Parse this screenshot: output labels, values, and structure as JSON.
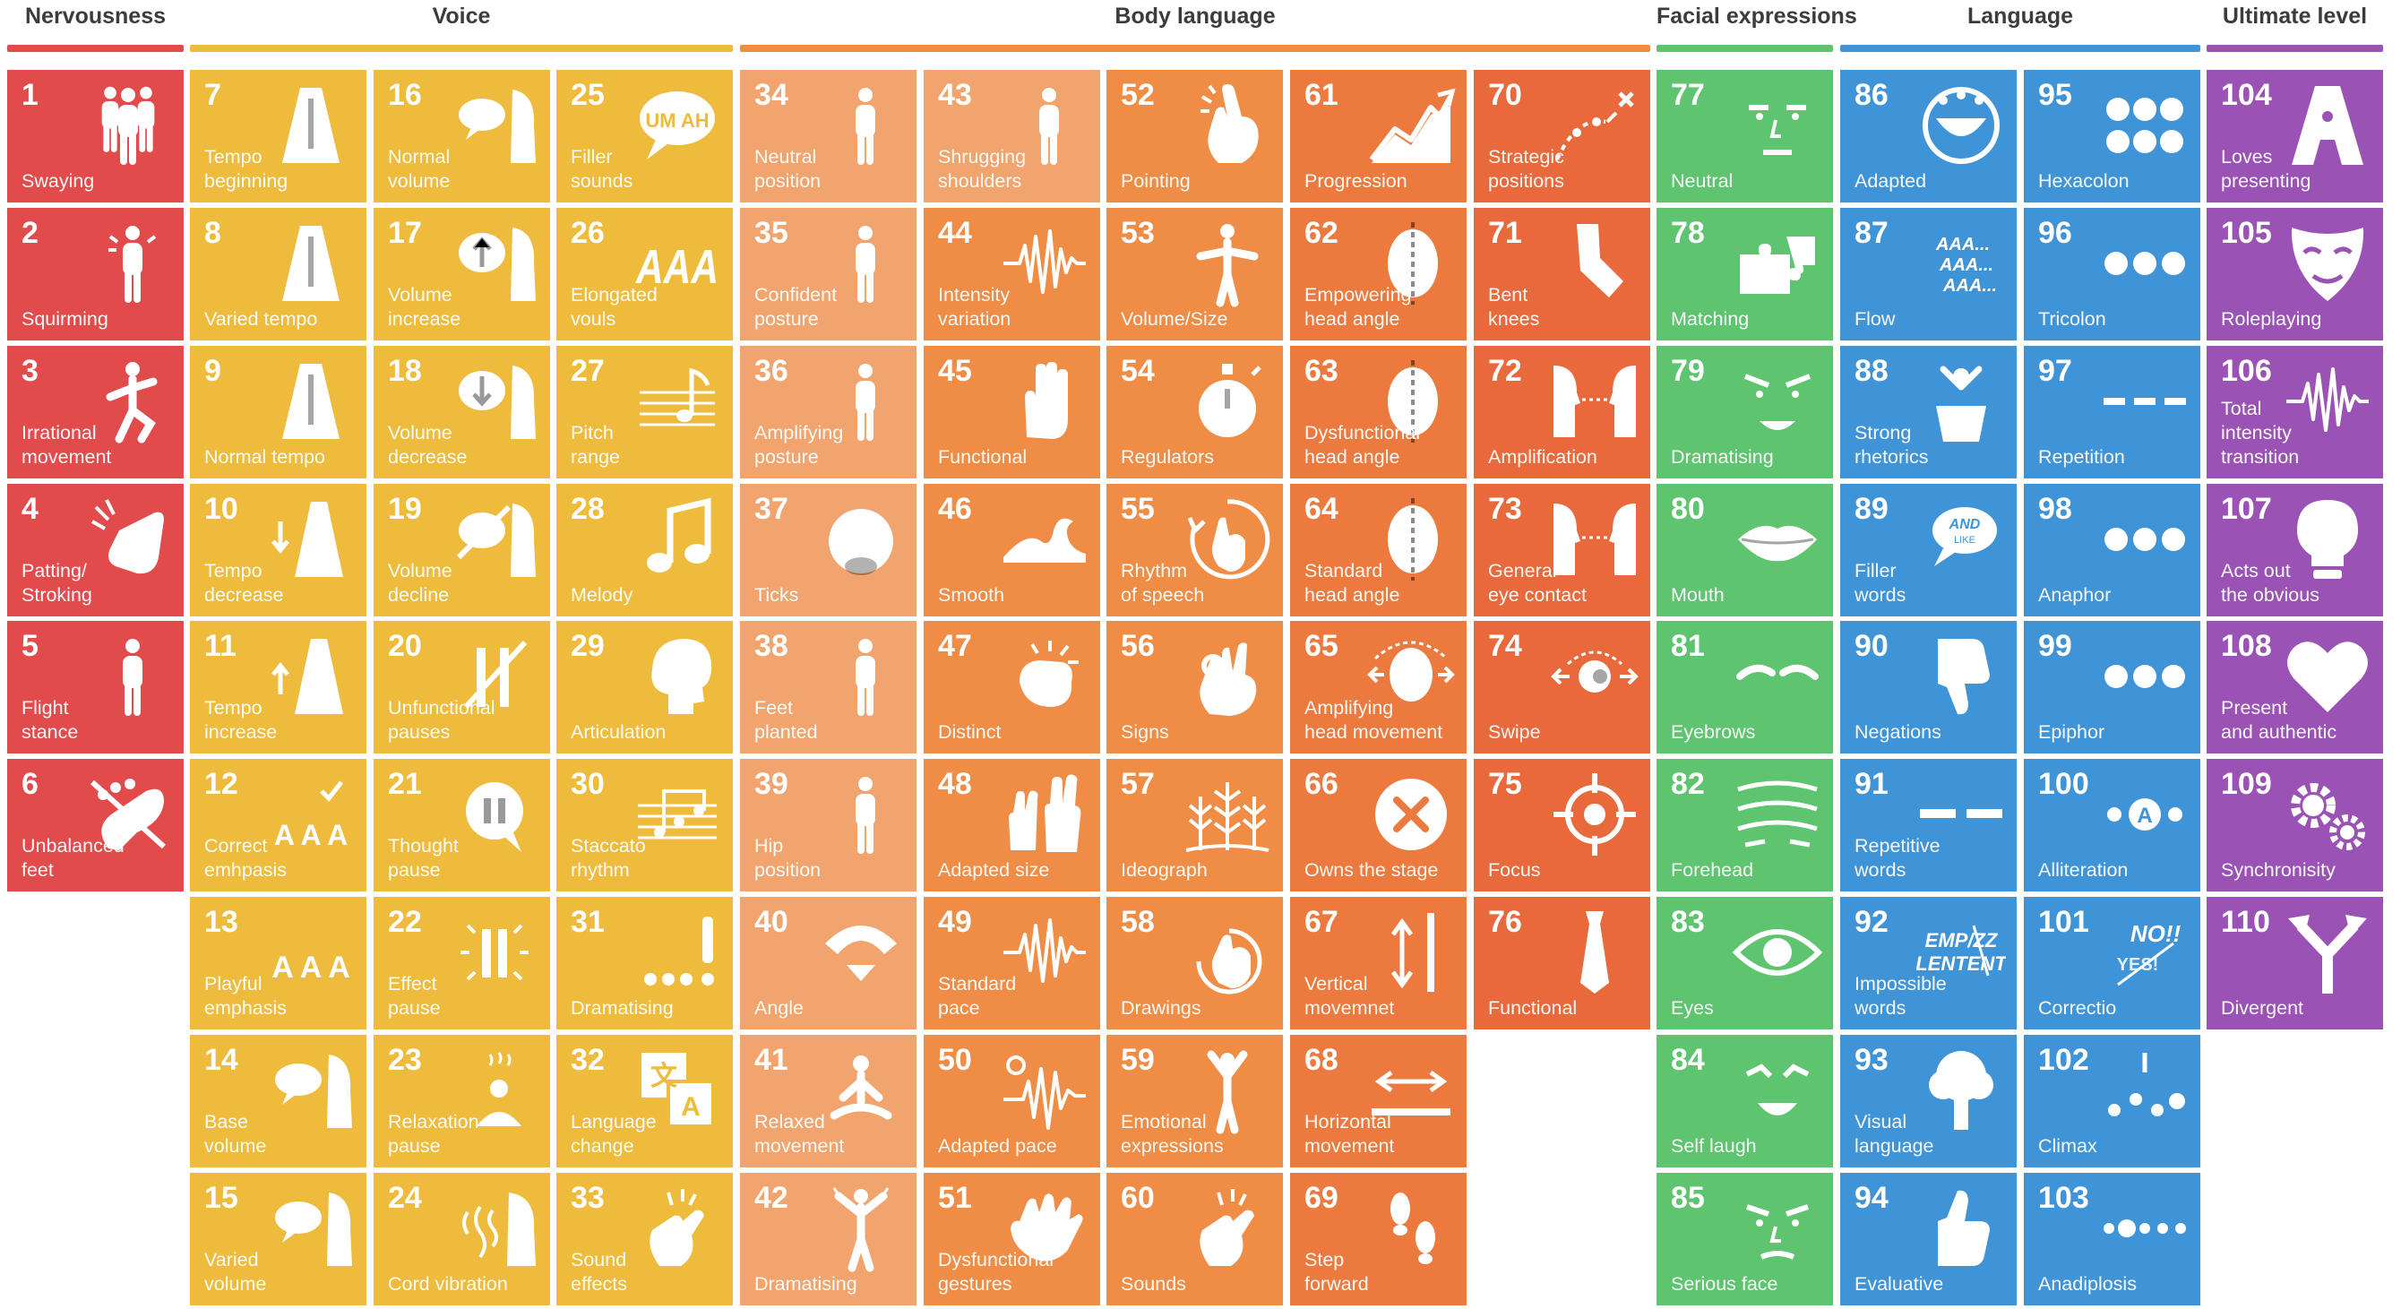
{
  "categories": [
    {
      "key": "nervousness",
      "title": "Nervousness",
      "color": "#e14b4c",
      "column": 0
    },
    {
      "key": "voice",
      "title": "Voice",
      "color": "#eebb3d",
      "column": 1
    },
    {
      "key": "body",
      "title": "Body language",
      "color": "#ef8c46",
      "column": 4
    },
    {
      "key": "facial",
      "title": "Facial expressions",
      "color": "#5ec46f",
      "column": 9
    },
    {
      "key": "language",
      "title": "Language",
      "color": "#3f94d8",
      "column": 10
    },
    {
      "key": "ultimate",
      "title": "Ultimate level",
      "color": "#9a52b4",
      "column": 12
    }
  ],
  "tiles": [
    {
      "n": "1",
      "label": "Swaying",
      "icon": "people-icon",
      "col": 0,
      "row": 0,
      "color": "#e14b4c"
    },
    {
      "n": "2",
      "label": "Squirming",
      "icon": "squirming-person-icon",
      "col": 0,
      "row": 1,
      "color": "#e14b4c"
    },
    {
      "n": "3",
      "label": "Irrational\nmovement",
      "icon": "balancing-person-icon",
      "col": 0,
      "row": 2,
      "color": "#e14b4c"
    },
    {
      "n": "4",
      "label": "Patting/\nStroking",
      "icon": "patting-hand-icon",
      "col": 0,
      "row": 3,
      "color": "#e14b4c"
    },
    {
      "n": "5",
      "label": "Flight\nstance",
      "icon": "standing-person-icon",
      "col": 0,
      "row": 4,
      "color": "#e14b4c"
    },
    {
      "n": "6",
      "label": "Unbalanced\nfeet",
      "icon": "crossed-foot-icon",
      "col": 0,
      "row": 5,
      "color": "#e14b4c"
    },
    {
      "n": "7",
      "label": "Tempo\nbeginning",
      "icon": "metronome-icon",
      "col": 1,
      "row": 0,
      "color": "#eebb3d"
    },
    {
      "n": "8",
      "label": "Varied tempo",
      "icon": "metronome-icon",
      "col": 1,
      "row": 1,
      "color": "#eebb3d"
    },
    {
      "n": "9",
      "label": "Normal tempo",
      "icon": "metronome-icon",
      "col": 1,
      "row": 2,
      "color": "#eebb3d"
    },
    {
      "n": "10",
      "label": "Tempo\ndecrease",
      "icon": "metronome-down-icon",
      "col": 1,
      "row": 3,
      "color": "#eebb3d"
    },
    {
      "n": "11",
      "label": "Tempo\nincrease",
      "icon": "metronome-up-icon",
      "col": 1,
      "row": 4,
      "color": "#eebb3d"
    },
    {
      "n": "12",
      "label": "Correct\nemhpasis",
      "icon": "aaa-check-icon",
      "col": 1,
      "row": 5,
      "color": "#eebb3d"
    },
    {
      "n": "13",
      "label": "Playful\nemphasis",
      "icon": "aaa-icon",
      "col": 1,
      "row": 6,
      "color": "#eebb3d"
    },
    {
      "n": "14",
      "label": "Base\nvolume",
      "icon": "speech-head-icon",
      "col": 1,
      "row": 7,
      "color": "#eebb3d"
    },
    {
      "n": "15",
      "label": "Varied\nvolume",
      "icon": "speech-head-icon",
      "col": 1,
      "row": 8,
      "color": "#eebb3d"
    },
    {
      "n": "16",
      "label": "Normal\nvolume",
      "icon": "speech-head-icon",
      "col": 2,
      "row": 0,
      "color": "#eebb3d"
    },
    {
      "n": "17",
      "label": "Volume\nincrease",
      "icon": "volume-up-head-icon",
      "col": 2,
      "row": 1,
      "color": "#eebb3d"
    },
    {
      "n": "18",
      "label": "Volume\ndecrease",
      "icon": "volume-down-head-icon",
      "col": 2,
      "row": 2,
      "color": "#eebb3d"
    },
    {
      "n": "19",
      "label": "Volume\ndecline",
      "icon": "muted-speech-icon",
      "col": 2,
      "row": 3,
      "color": "#eebb3d"
    },
    {
      "n": "20",
      "label": "Unfunctional\npauses",
      "icon": "crossed-pause-icon",
      "col": 2,
      "row": 4,
      "color": "#eebb3d"
    },
    {
      "n": "21",
      "label": "Thought\npause",
      "icon": "pause-bubble-icon",
      "col": 2,
      "row": 5,
      "color": "#eebb3d"
    },
    {
      "n": "22",
      "label": "Effect\npause",
      "icon": "pause-burst-icon",
      "col": 2,
      "row": 6,
      "color": "#eebb3d"
    },
    {
      "n": "23",
      "label": "Relaxation\npause",
      "icon": "relaxing-person-icon",
      "col": 2,
      "row": 7,
      "color": "#eebb3d"
    },
    {
      "n": "24",
      "label": "Cord vibration",
      "icon": "vibration-head-icon",
      "col": 2,
      "row": 8,
      "color": "#eebb3d"
    },
    {
      "n": "25",
      "label": "Filler\nsounds",
      "icon": "filler-bubble-icon",
      "col": 3,
      "row": 0,
      "color": "#eebb3d"
    },
    {
      "n": "26",
      "label": "Elongated\nvouls",
      "icon": "elongated-a-icon",
      "col": 3,
      "row": 1,
      "color": "#eebb3d"
    },
    {
      "n": "27",
      "label": "Pitch\nrange",
      "icon": "music-staff-icon",
      "col": 3,
      "row": 2,
      "color": "#eebb3d"
    },
    {
      "n": "28",
      "label": "Melody",
      "icon": "music-note-icon",
      "col": 3,
      "row": 3,
      "color": "#eebb3d"
    },
    {
      "n": "29",
      "label": "Articulation",
      "icon": "head-profile-icon",
      "col": 3,
      "row": 4,
      "color": "#eebb3d"
    },
    {
      "n": "30",
      "label": "Staccato\nrhythm",
      "icon": "staccato-staff-icon",
      "col": 3,
      "row": 5,
      "color": "#eebb3d"
    },
    {
      "n": "31",
      "label": "Dramatising",
      "icon": "dots-exclamation-icon",
      "col": 3,
      "row": 6,
      "color": "#eebb3d"
    },
    {
      "n": "32",
      "label": "Language\nchange",
      "icon": "translate-icon",
      "col": 3,
      "row": 7,
      "color": "#eebb3d"
    },
    {
      "n": "33",
      "label": "Sound\neffects",
      "icon": "snapping-hand-icon",
      "col": 3,
      "row": 8,
      "color": "#eebb3d"
    },
    {
      "n": "34",
      "label": "Neutral\nposition",
      "icon": "standing-person-icon",
      "col": 4,
      "row": 0,
      "color": "#f2a46e"
    },
    {
      "n": "35",
      "label": "Confident\nposture",
      "icon": "standing-person-icon",
      "col": 4,
      "row": 1,
      "color": "#f2a46e"
    },
    {
      "n": "36",
      "label": "Amplifying\nposture",
      "icon": "standing-person-icon",
      "col": 4,
      "row": 2,
      "color": "#f2a46e"
    },
    {
      "n": "37",
      "label": "Ticks",
      "icon": "scratching-head-icon",
      "col": 4,
      "row": 3,
      "color": "#f2a46e"
    },
    {
      "n": "38",
      "label": "Feet\nplanted",
      "icon": "standing-person-icon",
      "col": 4,
      "row": 4,
      "color": "#f2a46e"
    },
    {
      "n": "39",
      "label": "Hip\nposition",
      "icon": "standing-person-icon",
      "col": 4,
      "row": 5,
      "color": "#f2a46e"
    },
    {
      "n": "40",
      "label": "Angle",
      "icon": "angle-arc-icon",
      "col": 4,
      "row": 6,
      "color": "#f2a46e"
    },
    {
      "n": "41",
      "label": "Relaxed\nmovement",
      "icon": "meditating-person-icon",
      "col": 4,
      "row": 7,
      "color": "#f2a46e"
    },
    {
      "n": "42",
      "label": "Dramatising",
      "icon": "arms-up-person-icon",
      "col": 4,
      "row": 8,
      "color": "#f2a46e"
    },
    {
      "n": "43",
      "label": "Shrugging\nshoulders",
      "icon": "standing-person-icon",
      "col": 5,
      "row": 0,
      "color": "#f2a46e"
    },
    {
      "n": "44",
      "label": "Intensity\nvariation",
      "icon": "waveform-icon",
      "col": 5,
      "row": 1,
      "color": "#ef8c46"
    },
    {
      "n": "45",
      "label": "Functional",
      "icon": "open-hand-icon",
      "col": 5,
      "row": 2,
      "color": "#ef8c46"
    },
    {
      "n": "46",
      "label": "Smooth",
      "icon": "wave-icon",
      "col": 5,
      "row": 3,
      "color": "#ef8c46"
    },
    {
      "n": "47",
      "label": "Distinct",
      "icon": "fist-burst-icon",
      "col": 5,
      "row": 4,
      "color": "#ef8c46"
    },
    {
      "n": "48",
      "label": "Adapted size",
      "icon": "two-hands-icon",
      "col": 5,
      "row": 5,
      "color": "#ef8c46"
    },
    {
      "n": "49",
      "label": "Standard\npace",
      "icon": "waveform-icon",
      "col": 5,
      "row": 6,
      "color": "#ef8c46"
    },
    {
      "n": "50",
      "label": "Adapted pace",
      "icon": "gear-waveform-icon",
      "col": 5,
      "row": 7,
      "color": "#ef8c46"
    },
    {
      "n": "51",
      "label": "Dysfunctional\ngestures",
      "icon": "grasping-hand-icon",
      "col": 5,
      "row": 8,
      "color": "#ef8c46"
    },
    {
      "n": "52",
      "label": "Pointing",
      "icon": "pointing-hand-icon",
      "col": 6,
      "row": 0,
      "color": "#ef8c46"
    },
    {
      "n": "53",
      "label": "Volume/Size",
      "icon": "arms-wide-person-icon",
      "col": 6,
      "row": 1,
      "color": "#ef8c46"
    },
    {
      "n": "54",
      "label": "Regulators",
      "icon": "stopwatch-icon",
      "col": 6,
      "row": 2,
      "color": "#ef8c46"
    },
    {
      "n": "55",
      "label": "Rhythm\nof speech",
      "icon": "circling-hand-icon",
      "col": 6,
      "row": 3,
      "color": "#ef8c46"
    },
    {
      "n": "56",
      "label": "Signs",
      "icon": "ok-hand-icon",
      "col": 6,
      "row": 4,
      "color": "#ef8c46"
    },
    {
      "n": "57",
      "label": "Ideograph",
      "icon": "plants-icon",
      "col": 6,
      "row": 5,
      "color": "#ef8c46"
    },
    {
      "n": "58",
      "label": "Drawings",
      "icon": "drawing-hand-icon",
      "col": 6,
      "row": 6,
      "color": "#ef8c46"
    },
    {
      "n": "59",
      "label": "Emotional\nexpressions",
      "icon": "cheering-person-icon",
      "col": 6,
      "row": 7,
      "color": "#ef8c46"
    },
    {
      "n": "60",
      "label": "Sounds",
      "icon": "snapping-hand-icon",
      "col": 6,
      "row": 8,
      "color": "#ef8c46"
    },
    {
      "n": "61",
      "label": "Progression",
      "icon": "rising-chart-icon",
      "col": 7,
      "row": 0,
      "color": "#ec7a3e"
    },
    {
      "n": "62",
      "label": "Empowering\nhead angle",
      "icon": "head-tilt-icon",
      "col": 7,
      "row": 1,
      "color": "#ec7a3e"
    },
    {
      "n": "63",
      "label": "Dysfunctional\nhead angle",
      "icon": "head-tilt-icon",
      "col": 7,
      "row": 2,
      "color": "#ec7a3e"
    },
    {
      "n": "64",
      "label": "Standard\nhead angle",
      "icon": "head-tilt-icon",
      "col": 7,
      "row": 3,
      "color": "#ec7a3e"
    },
    {
      "n": "65",
      "label": "Amplifying\nhead movement",
      "icon": "head-turn-icon",
      "col": 7,
      "row": 4,
      "color": "#ec7a3e"
    },
    {
      "n": "66",
      "label": "Owns the stage",
      "icon": "x-circle-icon",
      "col": 7,
      "row": 5,
      "color": "#ec7a3e"
    },
    {
      "n": "67",
      "label": "Vertical\nmovemnet",
      "icon": "vertical-arrow-icon",
      "col": 7,
      "row": 6,
      "color": "#ec7a3e"
    },
    {
      "n": "68",
      "label": "Horizontal\nmovement",
      "icon": "horizontal-arrow-icon",
      "col": 7,
      "row": 7,
      "color": "#ec7a3e"
    },
    {
      "n": "69",
      "label": "Step\nforward",
      "icon": "footprints-icon",
      "col": 7,
      "row": 8,
      "color": "#ec7a3e"
    },
    {
      "n": "70",
      "label": "Strategic\npositions",
      "icon": "path-x-icon",
      "col": 8,
      "row": 0,
      "color": "#e8693b"
    },
    {
      "n": "71",
      "label": "Bent\nknees",
      "icon": "bent-knee-icon",
      "col": 8,
      "row": 1,
      "color": "#e8693b"
    },
    {
      "n": "72",
      "label": "Amplification",
      "icon": "facing-heads-icon",
      "col": 8,
      "row": 2,
      "color": "#e8693b"
    },
    {
      "n": "73",
      "label": "General\neye contact",
      "icon": "facing-heads-icon",
      "col": 8,
      "row": 3,
      "color": "#e8693b"
    },
    {
      "n": "74",
      "label": "Swipe",
      "icon": "eye-swipe-icon",
      "col": 8,
      "row": 4,
      "color": "#e8693b"
    },
    {
      "n": "75",
      "label": "Focus",
      "icon": "crosshair-icon",
      "col": 8,
      "row": 5,
      "color": "#e8693b"
    },
    {
      "n": "76",
      "label": "Functional",
      "icon": "tie-icon",
      "col": 8,
      "row": 6,
      "color": "#e8693b"
    },
    {
      "n": "77",
      "label": "Neutral",
      "icon": "neutral-face-icon",
      "col": 9,
      "row": 0,
      "color": "#5ec46f"
    },
    {
      "n": "78",
      "label": "Matching",
      "icon": "puzzle-icon",
      "col": 9,
      "row": 1,
      "color": "#5ec46f"
    },
    {
      "n": "79",
      "label": "Dramatising",
      "icon": "dramatic-face-icon",
      "col": 9,
      "row": 2,
      "color": "#5ec46f"
    },
    {
      "n": "80",
      "label": "Mouth",
      "icon": "lips-icon",
      "col": 9,
      "row": 3,
      "color": "#5ec46f"
    },
    {
      "n": "81",
      "label": "Eyebrows",
      "icon": "eyebrows-icon",
      "col": 9,
      "row": 4,
      "color": "#5ec46f"
    },
    {
      "n": "82",
      "label": "Forehead",
      "icon": "forehead-lines-icon",
      "col": 9,
      "row": 5,
      "color": "#5ec46f"
    },
    {
      "n": "83",
      "label": "Eyes",
      "icon": "eye-icon",
      "col": 9,
      "row": 6,
      "color": "#5ec46f"
    },
    {
      "n": "84",
      "label": "Self laugh",
      "icon": "laughing-face-icon",
      "col": 9,
      "row": 7,
      "color": "#5ec46f"
    },
    {
      "n": "85",
      "label": "Serious face",
      "icon": "serious-face-icon",
      "col": 9,
      "row": 8,
      "color": "#5ec46f"
    },
    {
      "n": "86",
      "label": "Adapted",
      "icon": "smiling-mouth-icon",
      "col": 10,
      "row": 0,
      "color": "#3f94d8"
    },
    {
      "n": "87",
      "label": "Flow",
      "icon": "aaa-text-icon",
      "col": 10,
      "row": 1,
      "color": "#3f94d8"
    },
    {
      "n": "88",
      "label": "Strong\nrhetorics",
      "icon": "podium-speaker-icon",
      "col": 10,
      "row": 2,
      "color": "#3f94d8"
    },
    {
      "n": "89",
      "label": "Filler\nwords",
      "icon": "and-like-bubble-icon",
      "col": 10,
      "row": 3,
      "color": "#3f94d8"
    },
    {
      "n": "90",
      "label": "Negations",
      "icon": "thumbs-down-icon",
      "col": 10,
      "row": 4,
      "color": "#3f94d8"
    },
    {
      "n": "91",
      "label": "Repetitive\nwords",
      "icon": "double-dash-icon",
      "col": 10,
      "row": 5,
      "color": "#3f94d8"
    },
    {
      "n": "92",
      "label": "Impossible\nwords",
      "icon": "scrambled-word-icon",
      "col": 10,
      "row": 6,
      "color": "#3f94d8"
    },
    {
      "n": "93",
      "label": "Visual\nlanguage",
      "icon": "tree-icon",
      "col": 10,
      "row": 7,
      "color": "#3f94d8"
    },
    {
      "n": "94",
      "label": "Evaluative",
      "icon": "thumbs-up-icon",
      "col": 10,
      "row": 8,
      "color": "#3f94d8"
    },
    {
      "n": "95",
      "label": "Hexacolon",
      "icon": "six-dots-icon",
      "col": 11,
      "row": 0,
      "color": "#3f94d8"
    },
    {
      "n": "96",
      "label": "Tricolon",
      "icon": "three-dots-icon",
      "col": 11,
      "row": 1,
      "color": "#3f94d8"
    },
    {
      "n": "97",
      "label": "Repetition",
      "icon": "three-dashes-icon",
      "col": 11,
      "row": 2,
      "color": "#3f94d8"
    },
    {
      "n": "98",
      "label": "Anaphor",
      "icon": "three-dots-icon",
      "col": 11,
      "row": 3,
      "color": "#3f94d8"
    },
    {
      "n": "99",
      "label": "Epiphor",
      "icon": "three-dots-icon",
      "col": 11,
      "row": 4,
      "color": "#3f94d8"
    },
    {
      "n": "100",
      "label": "Alliteration",
      "icon": "dot-a-dot-icon",
      "col": 11,
      "row": 5,
      "color": "#3f94d8"
    },
    {
      "n": "101",
      "label": "Correctio",
      "icon": "no-yes-icon",
      "col": 11,
      "row": 6,
      "color": "#3f94d8"
    },
    {
      "n": "102",
      "label": "Climax",
      "icon": "rising-dots-icon",
      "col": 11,
      "row": 7,
      "color": "#3f94d8"
    },
    {
      "n": "103",
      "label": "Anadiplosis",
      "icon": "dot-chain-icon",
      "col": 11,
      "row": 8,
      "color": "#3f94d8"
    },
    {
      "n": "104",
      "label": "Loves\npresenting",
      "icon": "letter-a-figure-icon",
      "col": 12,
      "row": 0,
      "color": "#9a52b4"
    },
    {
      "n": "105",
      "label": "Roleplaying",
      "icon": "mask-icon",
      "col": 12,
      "row": 1,
      "color": "#9a52b4"
    },
    {
      "n": "106",
      "label": "Total\nintensity\ntransition",
      "icon": "waveform-icon",
      "col": 12,
      "row": 2,
      "color": "#9a52b4"
    },
    {
      "n": "107",
      "label": "Acts out\nthe obvious",
      "icon": "lightbulb-icon",
      "col": 12,
      "row": 3,
      "color": "#9a52b4"
    },
    {
      "n": "108",
      "label": "Present\nand authentic",
      "icon": "heart-icon",
      "col": 12,
      "row": 4,
      "color": "#9a52b4"
    },
    {
      "n": "109",
      "label": "Synchronisity",
      "icon": "gears-icon",
      "col": 12,
      "row": 5,
      "color": "#9a52b4"
    },
    {
      "n": "110",
      "label": "Divergent",
      "icon": "diverging-arrow-icon",
      "col": 12,
      "row": 6,
      "color": "#9a52b4"
    }
  ]
}
